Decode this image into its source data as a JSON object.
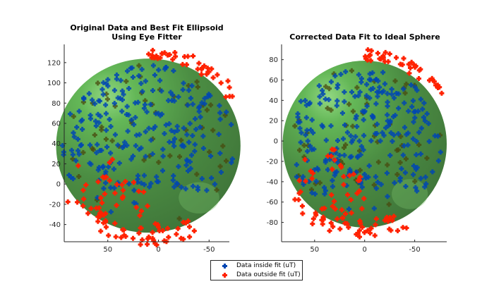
{
  "colors": {
    "inside": "#0047b3",
    "outside": "#ff2200",
    "sphere_light": "#6ac35a",
    "sphere_dark": "#3c7a36",
    "axis": "#262626"
  },
  "legend": {
    "items": [
      {
        "label": "Data inside fit (uT)",
        "color": "#0047b3"
      },
      {
        "label": "Data outside fit (uT)",
        "color": "#ff2200"
      }
    ]
  },
  "chart_data": [
    {
      "type": "scatter",
      "title_line1": "Original Data and Best Fit Ellipsoid",
      "title_line2": "Using Eye Fitter",
      "xlabel": "",
      "ylabel": "",
      "xlim": [
        93,
        -70
      ],
      "ylim": [
        -57,
        138
      ],
      "x_ticks": [
        50,
        0,
        -50
      ],
      "x_tick_labels": [
        "50",
        "0",
        "-50"
      ],
      "y_ticks": [
        -40,
        -20,
        0,
        20,
        40,
        60,
        80,
        100,
        120
      ],
      "y_tick_labels": [
        "-40",
        "-20",
        "0",
        "20",
        "40",
        "60",
        "80",
        "100",
        "120"
      ],
      "ellipsoid": {
        "center": [
          10,
          38
        ],
        "radius_x": 91,
        "radius_y": 86
      },
      "series": [
        {
          "name": "Data inside fit (uT)",
          "count": 300
        },
        {
          "name": "Data outside fit (uT)",
          "count": 130
        }
      ]
    },
    {
      "type": "scatter",
      "title_line1": "Corrected Data Fit to Ideal Sphere",
      "title_line2": "",
      "xlabel": "",
      "ylabel": "",
      "xlim": [
        83,
        -82
      ],
      "ylim": [
        -99,
        95
      ],
      "x_ticks": [
        50,
        0,
        -50
      ],
      "x_tick_labels": [
        "50",
        "0",
        "-50"
      ],
      "y_ticks": [
        -80,
        -60,
        -40,
        -20,
        0,
        20,
        40,
        60,
        80
      ],
      "y_tick_labels": [
        "-80",
        "-60",
        "-40",
        "-20",
        "0",
        "20",
        "40",
        "60",
        "80"
      ],
      "ellipsoid": {
        "center": [
          0,
          -3
        ],
        "radius_x": 82,
        "radius_y": 82
      },
      "series": [
        {
          "name": "Data inside fit (uT)",
          "count": 300
        },
        {
          "name": "Data outside fit (uT)",
          "count": 130
        }
      ]
    }
  ]
}
